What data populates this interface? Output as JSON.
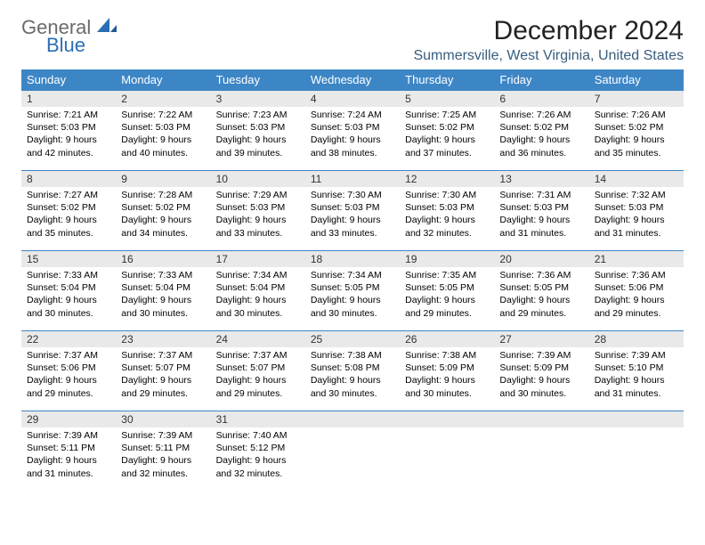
{
  "logo": {
    "general": "General",
    "blue": "Blue"
  },
  "title": "December 2024",
  "location": "Summersville, West Virginia, United States",
  "colors": {
    "header_bg": "#3d86c6",
    "header_text": "#ffffff",
    "daynum_bg": "#e9e9e9",
    "rule": "#3d86c6",
    "location_text": "#385d7e",
    "logo_gray": "#6b6b6b",
    "logo_blue": "#2a6fb5"
  },
  "weekdays": [
    "Sunday",
    "Monday",
    "Tuesday",
    "Wednesday",
    "Thursday",
    "Friday",
    "Saturday"
  ],
  "weeks": [
    [
      {
        "num": "1",
        "sunrise": "Sunrise: 7:21 AM",
        "sunset": "Sunset: 5:03 PM",
        "daylight": "Daylight: 9 hours and 42 minutes."
      },
      {
        "num": "2",
        "sunrise": "Sunrise: 7:22 AM",
        "sunset": "Sunset: 5:03 PM",
        "daylight": "Daylight: 9 hours and 40 minutes."
      },
      {
        "num": "3",
        "sunrise": "Sunrise: 7:23 AM",
        "sunset": "Sunset: 5:03 PM",
        "daylight": "Daylight: 9 hours and 39 minutes."
      },
      {
        "num": "4",
        "sunrise": "Sunrise: 7:24 AM",
        "sunset": "Sunset: 5:03 PM",
        "daylight": "Daylight: 9 hours and 38 minutes."
      },
      {
        "num": "5",
        "sunrise": "Sunrise: 7:25 AM",
        "sunset": "Sunset: 5:02 PM",
        "daylight": "Daylight: 9 hours and 37 minutes."
      },
      {
        "num": "6",
        "sunrise": "Sunrise: 7:26 AM",
        "sunset": "Sunset: 5:02 PM",
        "daylight": "Daylight: 9 hours and 36 minutes."
      },
      {
        "num": "7",
        "sunrise": "Sunrise: 7:26 AM",
        "sunset": "Sunset: 5:02 PM",
        "daylight": "Daylight: 9 hours and 35 minutes."
      }
    ],
    [
      {
        "num": "8",
        "sunrise": "Sunrise: 7:27 AM",
        "sunset": "Sunset: 5:02 PM",
        "daylight": "Daylight: 9 hours and 35 minutes."
      },
      {
        "num": "9",
        "sunrise": "Sunrise: 7:28 AM",
        "sunset": "Sunset: 5:02 PM",
        "daylight": "Daylight: 9 hours and 34 minutes."
      },
      {
        "num": "10",
        "sunrise": "Sunrise: 7:29 AM",
        "sunset": "Sunset: 5:03 PM",
        "daylight": "Daylight: 9 hours and 33 minutes."
      },
      {
        "num": "11",
        "sunrise": "Sunrise: 7:30 AM",
        "sunset": "Sunset: 5:03 PM",
        "daylight": "Daylight: 9 hours and 33 minutes."
      },
      {
        "num": "12",
        "sunrise": "Sunrise: 7:30 AM",
        "sunset": "Sunset: 5:03 PM",
        "daylight": "Daylight: 9 hours and 32 minutes."
      },
      {
        "num": "13",
        "sunrise": "Sunrise: 7:31 AM",
        "sunset": "Sunset: 5:03 PM",
        "daylight": "Daylight: 9 hours and 31 minutes."
      },
      {
        "num": "14",
        "sunrise": "Sunrise: 7:32 AM",
        "sunset": "Sunset: 5:03 PM",
        "daylight": "Daylight: 9 hours and 31 minutes."
      }
    ],
    [
      {
        "num": "15",
        "sunrise": "Sunrise: 7:33 AM",
        "sunset": "Sunset: 5:04 PM",
        "daylight": "Daylight: 9 hours and 30 minutes."
      },
      {
        "num": "16",
        "sunrise": "Sunrise: 7:33 AM",
        "sunset": "Sunset: 5:04 PM",
        "daylight": "Daylight: 9 hours and 30 minutes."
      },
      {
        "num": "17",
        "sunrise": "Sunrise: 7:34 AM",
        "sunset": "Sunset: 5:04 PM",
        "daylight": "Daylight: 9 hours and 30 minutes."
      },
      {
        "num": "18",
        "sunrise": "Sunrise: 7:34 AM",
        "sunset": "Sunset: 5:05 PM",
        "daylight": "Daylight: 9 hours and 30 minutes."
      },
      {
        "num": "19",
        "sunrise": "Sunrise: 7:35 AM",
        "sunset": "Sunset: 5:05 PM",
        "daylight": "Daylight: 9 hours and 29 minutes."
      },
      {
        "num": "20",
        "sunrise": "Sunrise: 7:36 AM",
        "sunset": "Sunset: 5:05 PM",
        "daylight": "Daylight: 9 hours and 29 minutes."
      },
      {
        "num": "21",
        "sunrise": "Sunrise: 7:36 AM",
        "sunset": "Sunset: 5:06 PM",
        "daylight": "Daylight: 9 hours and 29 minutes."
      }
    ],
    [
      {
        "num": "22",
        "sunrise": "Sunrise: 7:37 AM",
        "sunset": "Sunset: 5:06 PM",
        "daylight": "Daylight: 9 hours and 29 minutes."
      },
      {
        "num": "23",
        "sunrise": "Sunrise: 7:37 AM",
        "sunset": "Sunset: 5:07 PM",
        "daylight": "Daylight: 9 hours and 29 minutes."
      },
      {
        "num": "24",
        "sunrise": "Sunrise: 7:37 AM",
        "sunset": "Sunset: 5:07 PM",
        "daylight": "Daylight: 9 hours and 29 minutes."
      },
      {
        "num": "25",
        "sunrise": "Sunrise: 7:38 AM",
        "sunset": "Sunset: 5:08 PM",
        "daylight": "Daylight: 9 hours and 30 minutes."
      },
      {
        "num": "26",
        "sunrise": "Sunrise: 7:38 AM",
        "sunset": "Sunset: 5:09 PM",
        "daylight": "Daylight: 9 hours and 30 minutes."
      },
      {
        "num": "27",
        "sunrise": "Sunrise: 7:39 AM",
        "sunset": "Sunset: 5:09 PM",
        "daylight": "Daylight: 9 hours and 30 minutes."
      },
      {
        "num": "28",
        "sunrise": "Sunrise: 7:39 AM",
        "sunset": "Sunset: 5:10 PM",
        "daylight": "Daylight: 9 hours and 31 minutes."
      }
    ],
    [
      {
        "num": "29",
        "sunrise": "Sunrise: 7:39 AM",
        "sunset": "Sunset: 5:11 PM",
        "daylight": "Daylight: 9 hours and 31 minutes."
      },
      {
        "num": "30",
        "sunrise": "Sunrise: 7:39 AM",
        "sunset": "Sunset: 5:11 PM",
        "daylight": "Daylight: 9 hours and 32 minutes."
      },
      {
        "num": "31",
        "sunrise": "Sunrise: 7:40 AM",
        "sunset": "Sunset: 5:12 PM",
        "daylight": "Daylight: 9 hours and 32 minutes."
      },
      null,
      null,
      null,
      null
    ]
  ]
}
